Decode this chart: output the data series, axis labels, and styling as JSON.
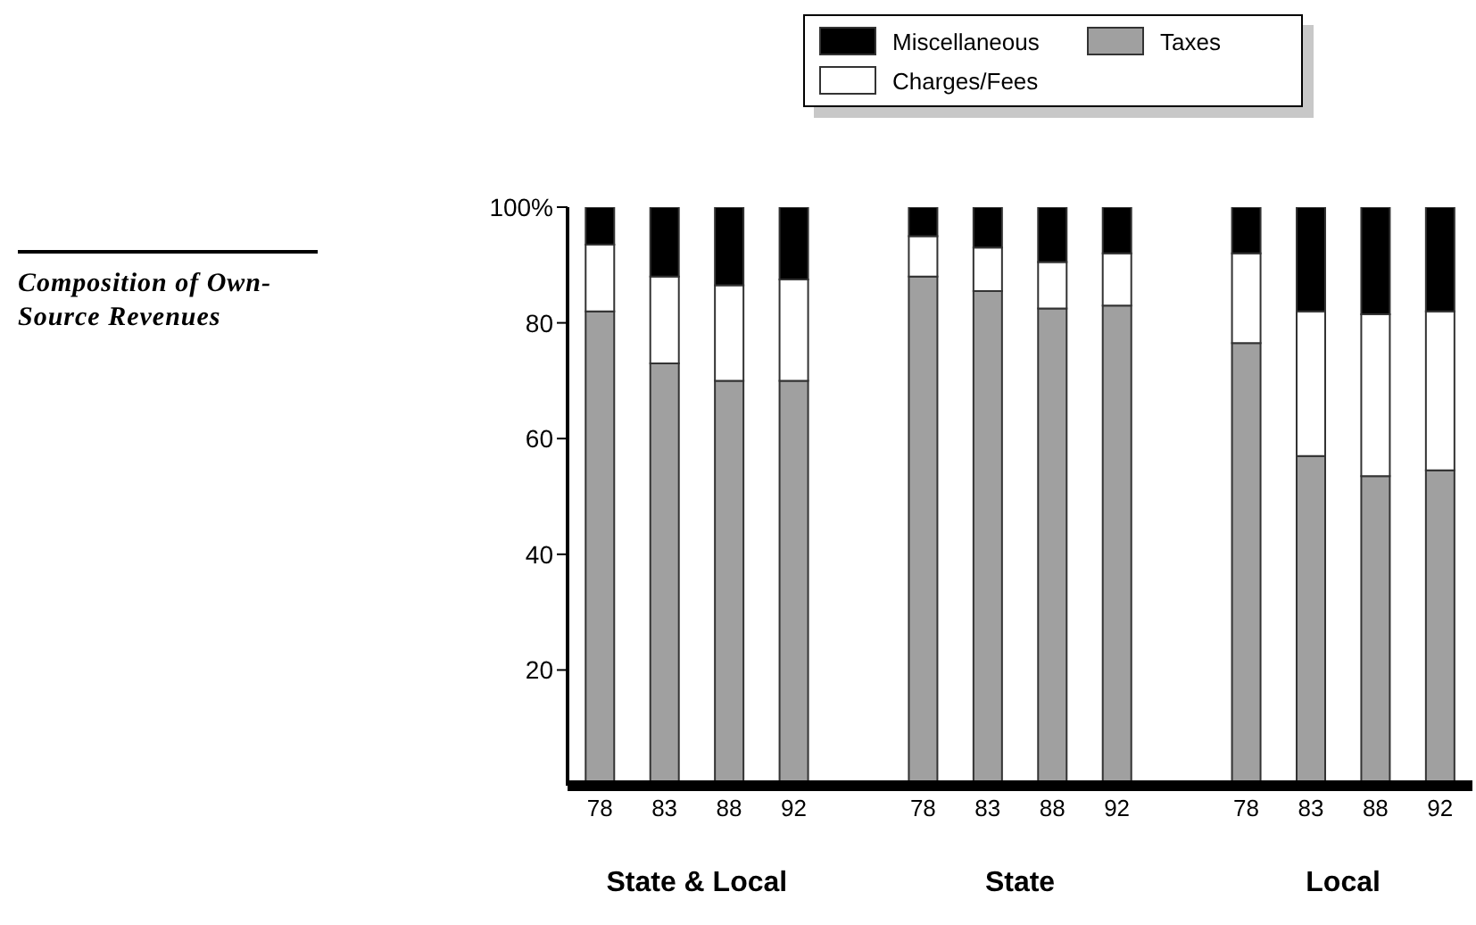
{
  "chart_data": {
    "type": "bar",
    "stacked": true,
    "title": "Composition of Own-Source Revenues",
    "categories": [
      "78",
      "83",
      "88",
      "92",
      null,
      "78",
      "83",
      "88",
      "92",
      null,
      "78",
      "83",
      "88",
      "92"
    ],
    "annotations": [
      "State & Local",
      "State",
      "Local"
    ],
    "legend": "top",
    "ylim": [
      0,
      100
    ],
    "yticks": [
      20,
      40,
      60,
      80,
      {
        "value": 100,
        "label": "100%"
      }
    ],
    "series": [
      {
        "name": "Taxes",
        "color": "#a0a0a0",
        "values": [
          82,
          73,
          70,
          70,
          null,
          88,
          85.5,
          82.5,
          83,
          null,
          76.5,
          57,
          53.5,
          54.5
        ]
      },
      {
        "name": "Charges/Fees",
        "color": "#ffffff",
        "values": [
          11.5,
          15,
          16.5,
          17.5,
          null,
          7,
          7.5,
          8,
          9,
          null,
          15.5,
          25,
          28,
          27.5
        ]
      },
      {
        "name": "Miscellaneous",
        "color": "#000000",
        "values": [
          6.5,
          12,
          13.5,
          12.5,
          null,
          5,
          7,
          9.5,
          8,
          null,
          8,
          18,
          18.5,
          18
        ]
      }
    ]
  }
}
